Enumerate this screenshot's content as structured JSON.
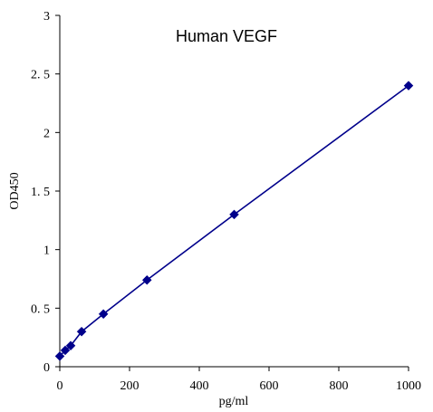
{
  "chart_data": {
    "type": "scatter",
    "title": "Human VEGF",
    "xlabel": "pg/ml",
    "ylabel": "OD450",
    "xlim": [
      0,
      1000
    ],
    "ylim": [
      0,
      3
    ],
    "xticks": [
      0,
      200,
      400,
      600,
      800,
      1000
    ],
    "yticks": [
      0,
      0.5,
      1,
      1.5,
      2,
      2.5,
      3
    ],
    "xtick_labels": [
      "0",
      "200",
      "400",
      "600",
      "800",
      "1000"
    ],
    "ytick_labels": [
      "0",
      "0. 5",
      "1",
      "1. 5",
      "2",
      "2. 5",
      "3"
    ],
    "grid": false,
    "legend": "none",
    "series": [
      {
        "marker": "diamond",
        "connected": true,
        "color": "#00008B",
        "x": [
          0,
          15.6,
          31.25,
          62.5,
          125,
          250,
          500,
          1000
        ],
        "y": [
          0.09,
          0.14,
          0.18,
          0.3,
          0.45,
          0.74,
          1.3,
          2.4
        ]
      }
    ]
  }
}
